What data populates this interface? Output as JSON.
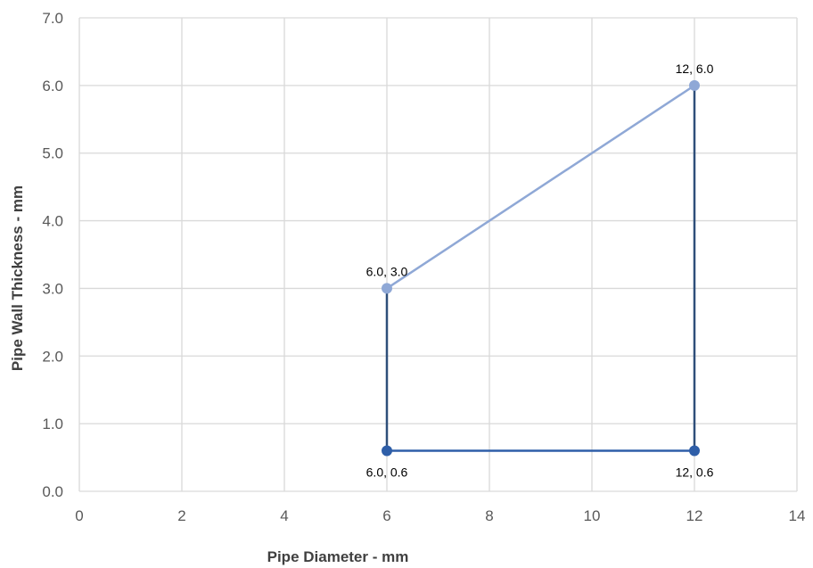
{
  "chart_data": {
    "type": "scatter",
    "title": "",
    "xlabel": "Pipe Diameter - mm",
    "ylabel": "Pipe Wall Thickness - mm",
    "xlim": [
      0,
      14
    ],
    "ylim": [
      0,
      7
    ],
    "x_ticks": [
      0,
      2,
      4,
      6,
      8,
      10,
      12,
      14
    ],
    "y_ticks": [
      "0.0",
      "1.0",
      "2.0",
      "3.0",
      "4.0",
      "5.0",
      "6.0",
      "7.0"
    ],
    "grid": true,
    "legend": "none",
    "series": [
      {
        "color": "#8FA8D6",
        "points": [
          {
            "x": 6,
            "y": 3.0,
            "label": "6.0, 3.0",
            "label_pos": "above"
          },
          {
            "x": 12,
            "y": 6.0,
            "label": "12, 6.0",
            "label_pos": "above"
          }
        ]
      },
      {
        "color": "#2E5EA8",
        "points": [
          {
            "x": 6,
            "y": 0.6,
            "label": "6.0, 0.6",
            "label_pos": "below"
          },
          {
            "x": 12,
            "y": 0.6,
            "label": "12, 0.6",
            "label_pos": "below"
          }
        ]
      },
      {
        "color": "#2F4F7A",
        "points": [
          {
            "x": 6,
            "y": 0.6
          },
          {
            "x": 6,
            "y": 3.0
          }
        ]
      },
      {
        "color": "#2F4F7A",
        "points": [
          {
            "x": 12,
            "y": 0.6
          },
          {
            "x": 12,
            "y": 6.0
          }
        ]
      }
    ]
  }
}
